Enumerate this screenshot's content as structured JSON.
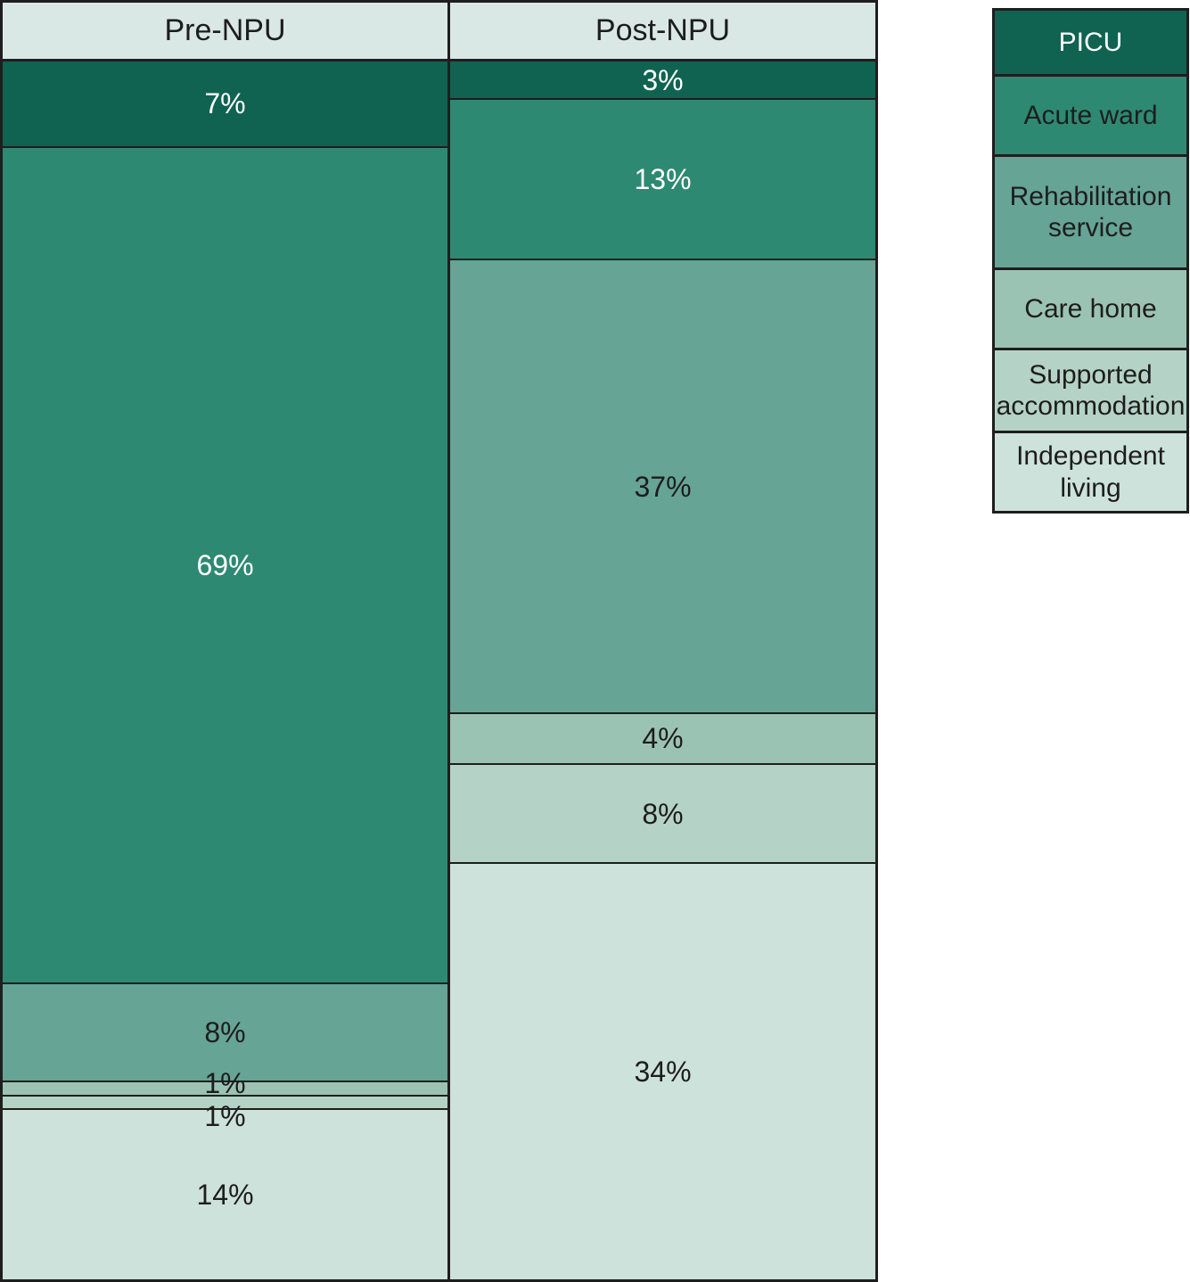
{
  "chart_data": {
    "type": "bar",
    "subtype": "100-percent-stacked-columns",
    "title": "",
    "categories": [
      {
        "name": "PICU",
        "color": "#106351",
        "chart_label_color": "#ffffff",
        "legend_label_color": "#ffffff"
      },
      {
        "name": "Acute ward",
        "color": "#2e8972",
        "chart_label_color": "#ffffff",
        "legend_label_color": "#1d1d1d"
      },
      {
        "name": "Rehabilitation service",
        "color": "#66a495",
        "chart_label_color": "#1d1d1d",
        "legend_label_color": "#1d1d1d"
      },
      {
        "name": "Care home",
        "color": "#9bc3b4",
        "chart_label_color": "#1d1d1d",
        "legend_label_color": "#1d1d1d"
      },
      {
        "name": "Supported accommodation",
        "color": "#b5d2c7",
        "chart_label_color": "#1d1d1d",
        "legend_label_color": "#1d1d1d"
      },
      {
        "name": "Independent living",
        "color": "#cde2da",
        "chart_label_color": "#1d1d1d",
        "legend_label_color": "#1d1d1d"
      }
    ],
    "columns": [
      {
        "label": "Pre-NPU",
        "segments": [
          {
            "category": "PICU",
            "value": 7,
            "label": "7%"
          },
          {
            "category": "Acute ward",
            "value": 69,
            "label": "69%"
          },
          {
            "category": "Rehabilitation service",
            "value": 8,
            "label": "8%"
          },
          {
            "category": "Care home",
            "value": 1,
            "label": "1%"
          },
          {
            "category": "Supported accommodation",
            "value": 1,
            "label": "1%"
          },
          {
            "category": "Independent living",
            "value": 14,
            "label": "14%"
          }
        ]
      },
      {
        "label": "Post-NPU",
        "segments": [
          {
            "category": "PICU",
            "value": 3,
            "label": "3%"
          },
          {
            "category": "Acute ward",
            "value": 13,
            "label": "13%"
          },
          {
            "category": "Rehabilitation service",
            "value": 37,
            "label": "37%"
          },
          {
            "category": "Care home",
            "value": 4,
            "label": "4%"
          },
          {
            "category": "Supported accommodation",
            "value": 8,
            "label": "8%"
          },
          {
            "category": "Independent living",
            "value": 34,
            "label": "34%"
          }
        ]
      }
    ],
    "legend": [
      "PICU",
      "Acute ward",
      "Rehabilitation service",
      "Care home",
      "Supported accommodation",
      "Independent living"
    ],
    "legend_position": "right",
    "header_bg": "#d9e8e4",
    "border_color": "#1e1e1e",
    "grid": false
  }
}
